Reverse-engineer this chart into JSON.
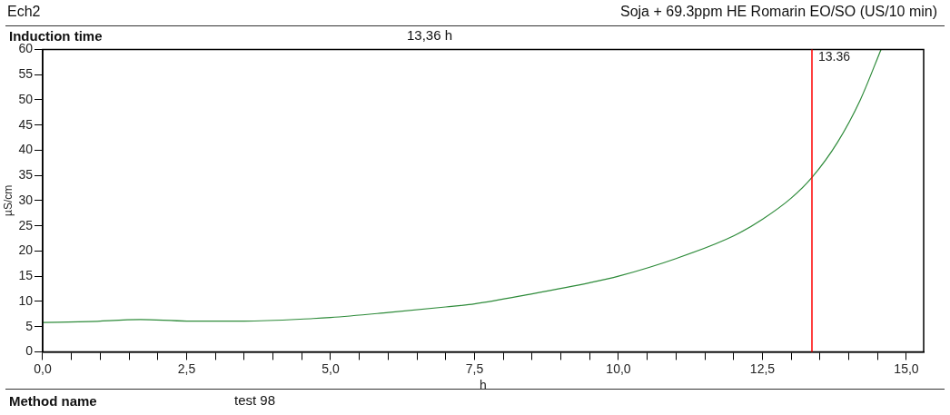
{
  "chart_data": {
    "type": "line",
    "title": "Ech2",
    "subtitle": "Soja + 69.3ppm HE Romarin EO/SO (US/10 min)",
    "xlabel": "h",
    "ylabel": "µS/cm",
    "annotations": [
      "Induction time",
      "13,36 h",
      "Method name",
      "test 98"
    ],
    "x": [
      0,
      0.8,
      1.7,
      2.5,
      3.5,
      4.7,
      5.0,
      6.0,
      7.0,
      7.5,
      8.5,
      9.5,
      10.0,
      11.0,
      12.0,
      12.5,
      13.0,
      13.36,
      13.8,
      14.2,
      14.56
    ],
    "series": [
      {
        "color": "#2e8b3a",
        "values": [
          5.8,
          6.0,
          6.4,
          6.1,
          6.1,
          6.6,
          6.8,
          7.8,
          8.9,
          9.5,
          11.5,
          13.7,
          15,
          18.5,
          23,
          26.3,
          30.5,
          34.6,
          41.5,
          50,
          60
        ]
      }
    ],
    "xlim": [
      0,
      15.3
    ],
    "ylim": [
      0,
      60
    ],
    "xticks": [
      {
        "value": 0,
        "label": "0,0"
      },
      {
        "value": 0.5,
        "label": null
      },
      {
        "value": 1,
        "label": null
      },
      {
        "value": 1.5,
        "label": null
      },
      {
        "value": 2,
        "label": null
      },
      {
        "value": 2.5,
        "label": "2,5"
      },
      {
        "value": 3,
        "label": null
      },
      {
        "value": 3.5,
        "label": null
      },
      {
        "value": 4,
        "label": null
      },
      {
        "value": 4.5,
        "label": null
      },
      {
        "value": 5,
        "label": "5,0"
      },
      {
        "value": 5.5,
        "label": null
      },
      {
        "value": 6,
        "label": null
      },
      {
        "value": 6.5,
        "label": null
      },
      {
        "value": 7,
        "label": null
      },
      {
        "value": 7.5,
        "label": "7,5"
      },
      {
        "value": 8,
        "label": null
      },
      {
        "value": 8.5,
        "label": null
      },
      {
        "value": 9,
        "label": null
      },
      {
        "value": 9.5,
        "label": null
      },
      {
        "value": 10,
        "label": "10,0"
      },
      {
        "value": 10.5,
        "label": null
      },
      {
        "value": 11,
        "label": null
      },
      {
        "value": 11.5,
        "label": null
      },
      {
        "value": 12,
        "label": null
      },
      {
        "value": 12.5,
        "label": "12,5"
      },
      {
        "value": 13,
        "label": null
      },
      {
        "value": 13.5,
        "label": null
      },
      {
        "value": 14,
        "label": null
      },
      {
        "value": 14.5,
        "label": null
      },
      {
        "value": 15,
        "label": "15,0"
      }
    ],
    "yticks": [
      0,
      5,
      10,
      15,
      20,
      25,
      30,
      35,
      40,
      45,
      50,
      55,
      60
    ],
    "ref_lines": [
      {
        "axis": "x",
        "value": 13.36,
        "label": "13.36",
        "color": "#ff0000"
      }
    ],
    "grid": false,
    "legend": false,
    "marker": "none",
    "line_style": "solid"
  }
}
